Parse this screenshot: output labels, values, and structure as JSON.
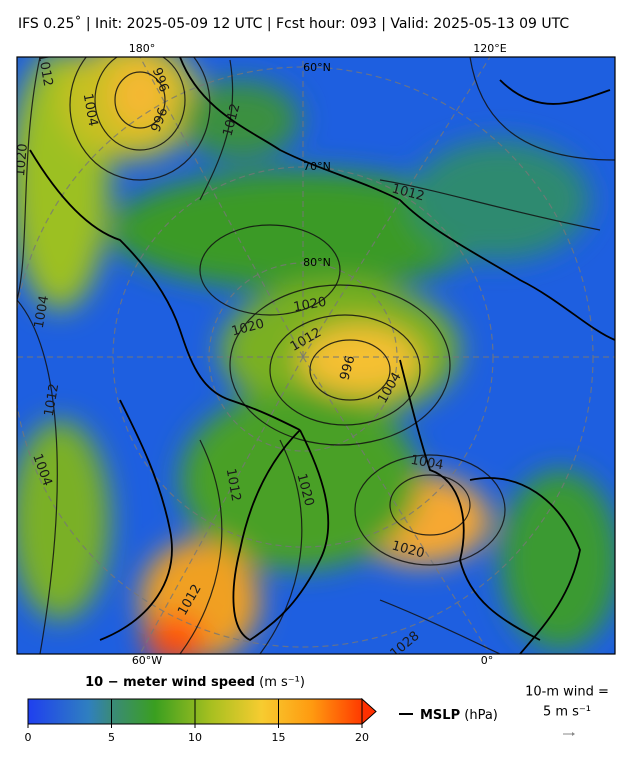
{
  "title": "IFS 0.25˚  |  Init: 2025-05-09 12 UTC  |  Fcst hour: 093  |  Valid: 2025-05-13 09 UTC",
  "map": {
    "longitude_labels": [
      "180°",
      "120°E",
      "60°W",
      "0°"
    ],
    "latitude_labels": [
      "60°N",
      "70°N",
      "80°N"
    ],
    "contour_labels": [
      "1012",
      "1004",
      "996",
      "996",
      "1012",
      "1020",
      "1012",
      "1004",
      "1020",
      "1020",
      "1012",
      "996",
      "1004",
      "1012",
      "1004",
      "1004",
      "1012",
      "1020",
      "1020",
      "1012",
      "1028"
    ]
  },
  "colorbar": {
    "title": "10 − meter wind speed",
    "unit": "(m s⁻¹)",
    "range": [
      0,
      20
    ],
    "ticks": [
      0,
      5,
      10,
      15,
      20
    ]
  },
  "legend": {
    "mslp_title": "MSLP",
    "mslp_unit": "(hPa)",
    "wind_key_line1": "10-m wind =",
    "wind_key_line2": "5 m s⁻¹"
  }
}
